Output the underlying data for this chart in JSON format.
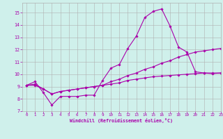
{
  "xlabel": "Windchill (Refroidissement éolien,°C)",
  "bg_color": "#cff0eb",
  "line_color": "#aa00aa",
  "grid_color": "#b0b0b0",
  "x_values": [
    0,
    1,
    2,
    3,
    4,
    5,
    6,
    7,
    8,
    9,
    10,
    11,
    12,
    13,
    14,
    15,
    16,
    17,
    18,
    19,
    20,
    21,
    22,
    23
  ],
  "series1": [
    9.1,
    9.4,
    8.5,
    7.5,
    8.2,
    8.2,
    8.2,
    8.3,
    8.3,
    9.5,
    10.5,
    10.8,
    12.1,
    13.1,
    14.6,
    15.1,
    15.3,
    13.9,
    12.2,
    11.8,
    10.2,
    10.1,
    10.05,
    10.1
  ],
  "series2": [
    9.1,
    9.2,
    8.8,
    8.4,
    8.6,
    8.7,
    8.8,
    8.9,
    9.0,
    9.1,
    9.4,
    9.6,
    9.9,
    10.1,
    10.4,
    10.6,
    10.9,
    11.1,
    11.4,
    11.6,
    11.8,
    11.9,
    12.0,
    12.1
  ],
  "series3": [
    9.1,
    9.1,
    8.8,
    8.4,
    8.6,
    8.7,
    8.8,
    8.9,
    9.0,
    9.1,
    9.2,
    9.3,
    9.5,
    9.6,
    9.7,
    9.8,
    9.85,
    9.9,
    9.95,
    10.0,
    10.05,
    10.1,
    10.1,
    10.1
  ],
  "ylim": [
    7,
    15.8
  ],
  "xlim": [
    -0.5,
    23
  ],
  "yticks": [
    7,
    8,
    9,
    10,
    11,
    12,
    13,
    14,
    15
  ],
  "xticks": [
    0,
    1,
    2,
    3,
    4,
    5,
    6,
    7,
    8,
    9,
    10,
    11,
    12,
    13,
    14,
    15,
    16,
    17,
    18,
    19,
    20,
    21,
    22,
    23
  ]
}
